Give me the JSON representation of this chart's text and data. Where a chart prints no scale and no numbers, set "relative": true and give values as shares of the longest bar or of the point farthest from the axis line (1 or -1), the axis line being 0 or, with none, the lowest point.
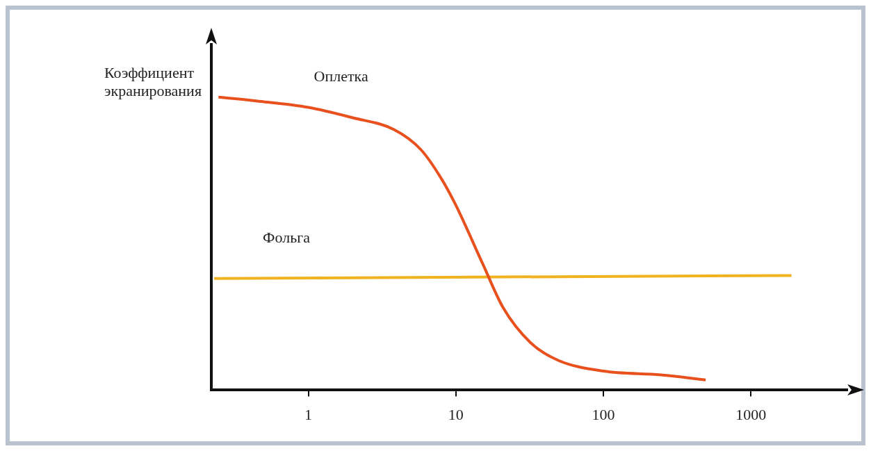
{
  "chart_data": {
    "type": "line",
    "ylabel": "Коэффициент экранирования",
    "relative": true,
    "log": "x",
    "xlim": [
      0.22,
      4500
    ],
    "xticks": [
      1,
      10,
      100,
      1000
    ],
    "legend": false,
    "grid": false,
    "marker": "none",
    "series": [
      {
        "name": "Оплетка",
        "color": "#e8501e",
        "x": [
          0.246,
          0.443,
          1,
          1.98,
          3.77,
          5.8,
          8.0,
          10,
          15.2,
          20.9,
          32.1,
          49.3,
          100,
          246,
          493
        ],
        "values": [
          1.0,
          0.987,
          0.965,
          0.93,
          0.89,
          0.82,
          0.72,
          0.63,
          0.43,
          0.28,
          0.16,
          0.1,
          0.063,
          0.05,
          0.033
        ]
      },
      {
        "name": "Фольга",
        "color": "#f0b21e",
        "x": [
          0.23,
          1880
        ],
        "values": [
          0.38,
          0.39
        ]
      }
    ]
  }
}
